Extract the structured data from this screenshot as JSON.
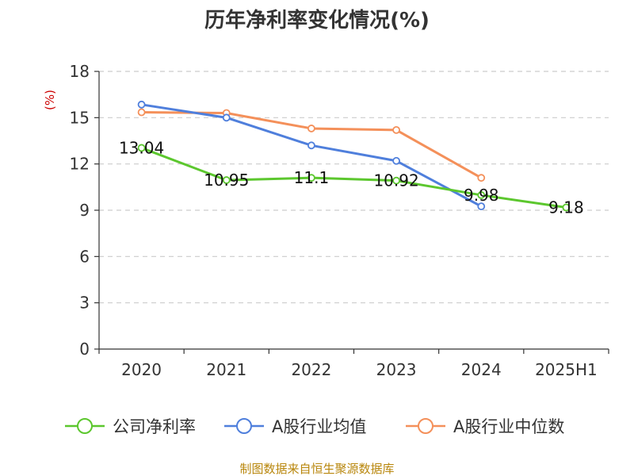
{
  "chart_data": {
    "type": "line",
    "title": "历年净利率变化情况(%)",
    "ylabel": "(%)",
    "categories": [
      "2020",
      "2021",
      "2022",
      "2023",
      "2024",
      "2025H1"
    ],
    "ylim": [
      0,
      18
    ],
    "yticks": [
      0,
      3,
      6,
      9,
      12,
      15,
      18
    ],
    "grid": true,
    "legend_position": "bottom",
    "series": [
      {
        "name": "公司净利率",
        "color": "#5cc72e",
        "values": [
          13.04,
          10.95,
          11.1,
          10.92,
          9.98,
          9.18
        ],
        "labels": [
          "13.04",
          "10.95",
          "11.1",
          "10.92",
          "9.98",
          "9.18"
        ]
      },
      {
        "name": "A股行业均值",
        "color": "#4f7fdc",
        "values": [
          15.85,
          15.0,
          13.2,
          12.2,
          9.25,
          null
        ]
      },
      {
        "name": "A股行业中位数",
        "color": "#f4905a",
        "values": [
          15.35,
          15.3,
          14.3,
          14.2,
          11.1,
          null
        ]
      }
    ]
  },
  "source": "制图数据来自恒生聚源数据库"
}
